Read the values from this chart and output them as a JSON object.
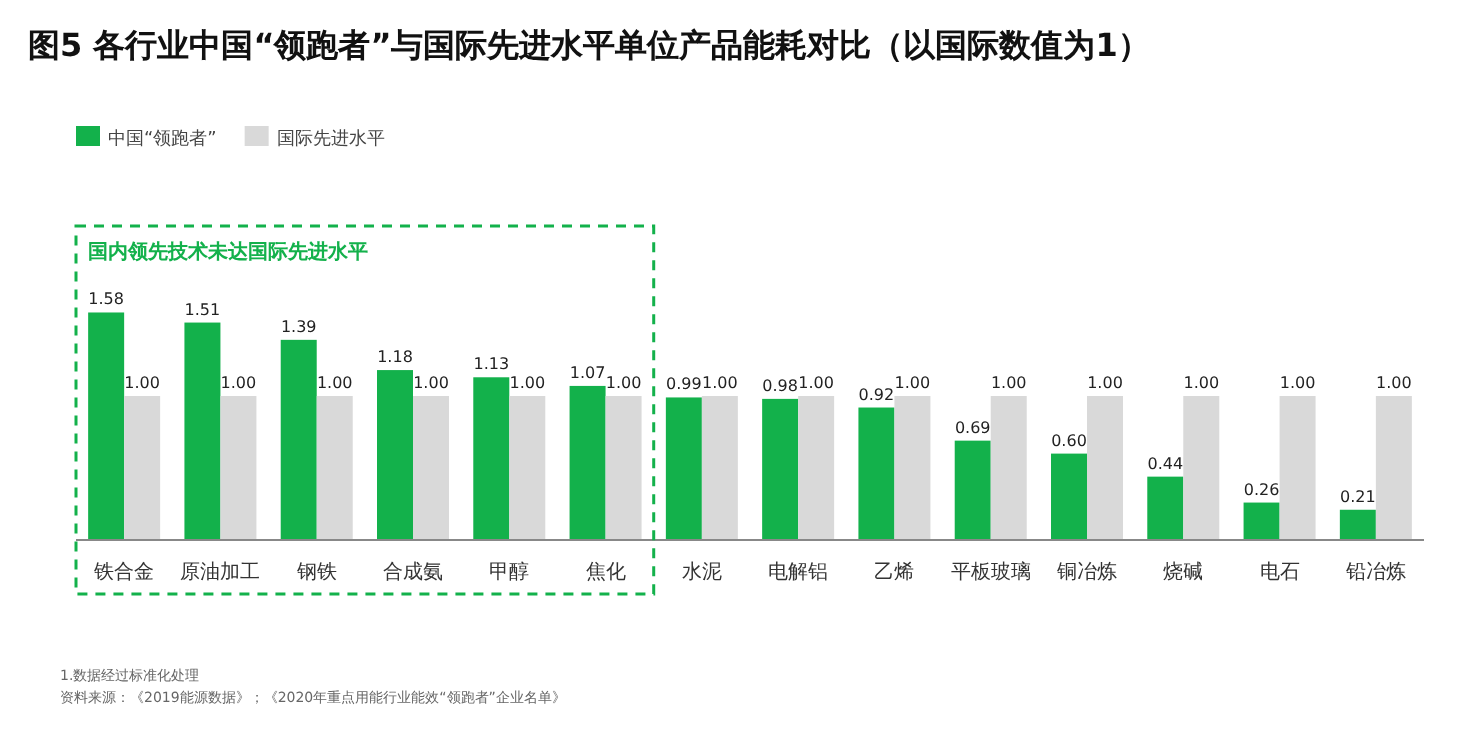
{
  "chart_data": {
    "type": "bar",
    "title": "图5 各行业中国“领跑者”与国际先进水平单位产品能耗对比（以国际数值为1）",
    "categories": [
      "铁合金",
      "原油加工",
      "钢铁",
      "合成氨",
      "甲醇",
      "焦化",
      "水泥",
      "电解铝",
      "乙烯",
      "平板玻璃",
      "铜冶炼",
      "烧碱",
      "电石",
      "铅冶炼"
    ],
    "series": [
      {
        "name": "中国“领跑者”",
        "color": "#13b14b",
        "values": [
          1.58,
          1.51,
          1.39,
          1.18,
          1.13,
          1.07,
          0.99,
          0.98,
          0.92,
          0.69,
          0.6,
          0.44,
          0.26,
          0.21
        ],
        "value_labels": [
          "1.58",
          "1.51",
          "1.39",
          "1.18",
          "1.13",
          "1.07",
          "0.99",
          "0.98",
          "0.92",
          "0.69",
          "0.60",
          "0.44",
          "0.26",
          "0.21"
        ]
      },
      {
        "name": "国际先进水平",
        "color": "#d9d9d9",
        "values": [
          1,
          1,
          1,
          1,
          1,
          1,
          1,
          1,
          1,
          1,
          1,
          1,
          1,
          1
        ],
        "value_labels": [
          "1.00",
          "1.00",
          "1.00",
          "1.00",
          "1.00",
          "1.00",
          "1.00",
          "1.00",
          "1.00",
          "1.00",
          "1.00",
          "1.00",
          "1.00",
          "1.00"
        ]
      }
    ],
    "legend": "top left",
    "annotations": [
      "国内领先技术未达国际先进水平",
      "1.数据经过标准化处理",
      "资料来源：《2019能源数据》；《2020年重点用能行业能效“领跑者”企业名单》"
    ]
  }
}
